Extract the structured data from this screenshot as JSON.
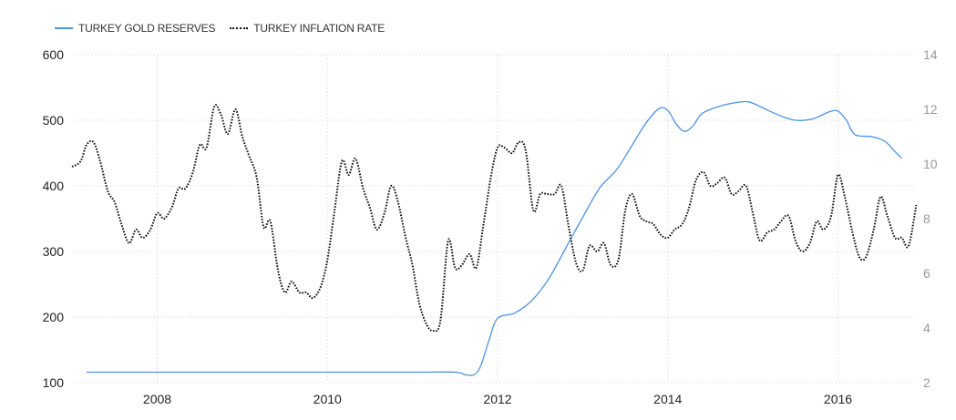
{
  "legend": {
    "gold_label": "TURKEY GOLD RESERVES",
    "inflation_label": "TURKEY INFLATION RATE"
  },
  "chart_data": {
    "type": "line",
    "legend_position": "top-left",
    "grid": true,
    "x_range": [
      2007.0,
      2017.0
    ],
    "x_ticks": [
      "2008",
      "2010",
      "2012",
      "2014",
      "2016"
    ],
    "y_left": {
      "range": [
        100,
        600
      ],
      "ticks": [
        "100",
        "200",
        "300",
        "400",
        "500",
        "600"
      ]
    },
    "y_right": {
      "range": [
        2,
        14
      ],
      "ticks": [
        "2",
        "4",
        "6",
        "8",
        "10",
        "12",
        "14"
      ]
    },
    "series": [
      {
        "name": "TURKEY GOLD RESERVES",
        "axis": "left",
        "color": "#4c93e0",
        "style": "solid",
        "points": [
          [
            2007.17,
            116
          ],
          [
            2008.0,
            116
          ],
          [
            2009.0,
            116
          ],
          [
            2010.0,
            116
          ],
          [
            2011.0,
            116
          ],
          [
            2011.5,
            116
          ],
          [
            2011.62,
            112
          ],
          [
            2011.72,
            112
          ],
          [
            2011.8,
            125
          ],
          [
            2011.9,
            165
          ],
          [
            2012.0,
            198
          ],
          [
            2012.2,
            206
          ],
          [
            2012.4,
            225
          ],
          [
            2012.6,
            258
          ],
          [
            2012.8,
            305
          ],
          [
            2013.0,
            352
          ],
          [
            2013.2,
            397
          ],
          [
            2013.4,
            425
          ],
          [
            2013.6,
            466
          ],
          [
            2013.75,
            497
          ],
          [
            2013.9,
            518
          ],
          [
            2014.0,
            515
          ],
          [
            2014.1,
            494
          ],
          [
            2014.2,
            483
          ],
          [
            2014.3,
            492
          ],
          [
            2014.4,
            510
          ],
          [
            2014.6,
            521
          ],
          [
            2014.8,
            527
          ],
          [
            2014.95,
            528
          ],
          [
            2015.1,
            520
          ],
          [
            2015.3,
            508
          ],
          [
            2015.5,
            500
          ],
          [
            2015.7,
            502
          ],
          [
            2015.9,
            513
          ],
          [
            2016.0,
            514
          ],
          [
            2016.1,
            500
          ],
          [
            2016.2,
            478
          ],
          [
            2016.4,
            475
          ],
          [
            2016.55,
            468
          ],
          [
            2016.65,
            455
          ],
          [
            2016.75,
            442
          ]
        ]
      },
      {
        "name": "TURKEY INFLATION RATE",
        "axis": "right",
        "color": "#111111",
        "style": "dotted",
        "points": [
          [
            2007.0,
            9.9
          ],
          [
            2007.1,
            10.1
          ],
          [
            2007.17,
            10.7
          ],
          [
            2007.25,
            10.8
          ],
          [
            2007.33,
            10.1
          ],
          [
            2007.42,
            9.0
          ],
          [
            2007.5,
            8.6
          ],
          [
            2007.58,
            7.8
          ],
          [
            2007.67,
            7.1
          ],
          [
            2007.75,
            7.6
          ],
          [
            2007.83,
            7.3
          ],
          [
            2007.92,
            7.6
          ],
          [
            2008.0,
            8.2
          ],
          [
            2008.08,
            8.0
          ],
          [
            2008.17,
            8.4
          ],
          [
            2008.25,
            9.1
          ],
          [
            2008.33,
            9.1
          ],
          [
            2008.42,
            9.7
          ],
          [
            2008.5,
            10.7
          ],
          [
            2008.58,
            10.6
          ],
          [
            2008.67,
            12.1
          ],
          [
            2008.75,
            11.8
          ],
          [
            2008.83,
            11.1
          ],
          [
            2008.92,
            12.0
          ],
          [
            2009.0,
            11.0
          ],
          [
            2009.08,
            10.3
          ],
          [
            2009.17,
            9.5
          ],
          [
            2009.25,
            7.7
          ],
          [
            2009.33,
            7.9
          ],
          [
            2009.42,
            6.1
          ],
          [
            2009.5,
            5.3
          ],
          [
            2009.58,
            5.7
          ],
          [
            2009.67,
            5.3
          ],
          [
            2009.75,
            5.3
          ],
          [
            2009.83,
            5.1
          ],
          [
            2009.92,
            5.5
          ],
          [
            2010.0,
            6.5
          ],
          [
            2010.08,
            8.2
          ],
          [
            2010.17,
            10.1
          ],
          [
            2010.25,
            9.6
          ],
          [
            2010.33,
            10.2
          ],
          [
            2010.42,
            9.1
          ],
          [
            2010.5,
            8.4
          ],
          [
            2010.58,
            7.6
          ],
          [
            2010.67,
            8.2
          ],
          [
            2010.75,
            9.2
          ],
          [
            2010.83,
            8.6
          ],
          [
            2010.92,
            7.3
          ],
          [
            2011.0,
            6.3
          ],
          [
            2011.08,
            4.9
          ],
          [
            2011.17,
            4.1
          ],
          [
            2011.25,
            3.9
          ],
          [
            2011.33,
            4.3
          ],
          [
            2011.42,
            7.2
          ],
          [
            2011.5,
            6.2
          ],
          [
            2011.58,
            6.3
          ],
          [
            2011.67,
            6.7
          ],
          [
            2011.75,
            6.2
          ],
          [
            2011.83,
            7.7
          ],
          [
            2011.92,
            9.5
          ],
          [
            2012.0,
            10.6
          ],
          [
            2012.08,
            10.6
          ],
          [
            2012.17,
            10.4
          ],
          [
            2012.25,
            10.8
          ],
          [
            2012.33,
            10.5
          ],
          [
            2012.42,
            8.3
          ],
          [
            2012.5,
            8.9
          ],
          [
            2012.58,
            8.9
          ],
          [
            2012.67,
            8.9
          ],
          [
            2012.75,
            9.2
          ],
          [
            2012.83,
            7.8
          ],
          [
            2012.92,
            6.4
          ],
          [
            2013.0,
            6.1
          ],
          [
            2013.08,
            7.0
          ],
          [
            2013.17,
            6.8
          ],
          [
            2013.25,
            7.1
          ],
          [
            2013.33,
            6.3
          ],
          [
            2013.42,
            6.5
          ],
          [
            2013.5,
            8.3
          ],
          [
            2013.58,
            8.9
          ],
          [
            2013.67,
            8.1
          ],
          [
            2013.75,
            7.9
          ],
          [
            2013.83,
            7.8
          ],
          [
            2013.92,
            7.4
          ],
          [
            2014.0,
            7.3
          ],
          [
            2014.08,
            7.6
          ],
          [
            2014.17,
            7.8
          ],
          [
            2014.25,
            8.4
          ],
          [
            2014.33,
            9.4
          ],
          [
            2014.42,
            9.7
          ],
          [
            2014.5,
            9.2
          ],
          [
            2014.58,
            9.3
          ],
          [
            2014.67,
            9.5
          ],
          [
            2014.75,
            8.9
          ],
          [
            2014.83,
            9.0
          ],
          [
            2014.92,
            9.2
          ],
          [
            2015.0,
            8.2
          ],
          [
            2015.08,
            7.2
          ],
          [
            2015.17,
            7.5
          ],
          [
            2015.25,
            7.6
          ],
          [
            2015.33,
            7.9
          ],
          [
            2015.42,
            8.1
          ],
          [
            2015.5,
            7.2
          ],
          [
            2015.58,
            6.8
          ],
          [
            2015.67,
            7.1
          ],
          [
            2015.75,
            7.9
          ],
          [
            2015.83,
            7.6
          ],
          [
            2015.92,
            8.1
          ],
          [
            2016.0,
            9.6
          ],
          [
            2016.08,
            8.8
          ],
          [
            2016.17,
            7.5
          ],
          [
            2016.25,
            6.6
          ],
          [
            2016.33,
            6.6
          ],
          [
            2016.42,
            7.6
          ],
          [
            2016.5,
            8.8
          ],
          [
            2016.58,
            8.1
          ],
          [
            2016.67,
            7.3
          ],
          [
            2016.75,
            7.3
          ],
          [
            2016.83,
            7.0
          ],
          [
            2016.92,
            8.5
          ]
        ]
      }
    ]
  }
}
